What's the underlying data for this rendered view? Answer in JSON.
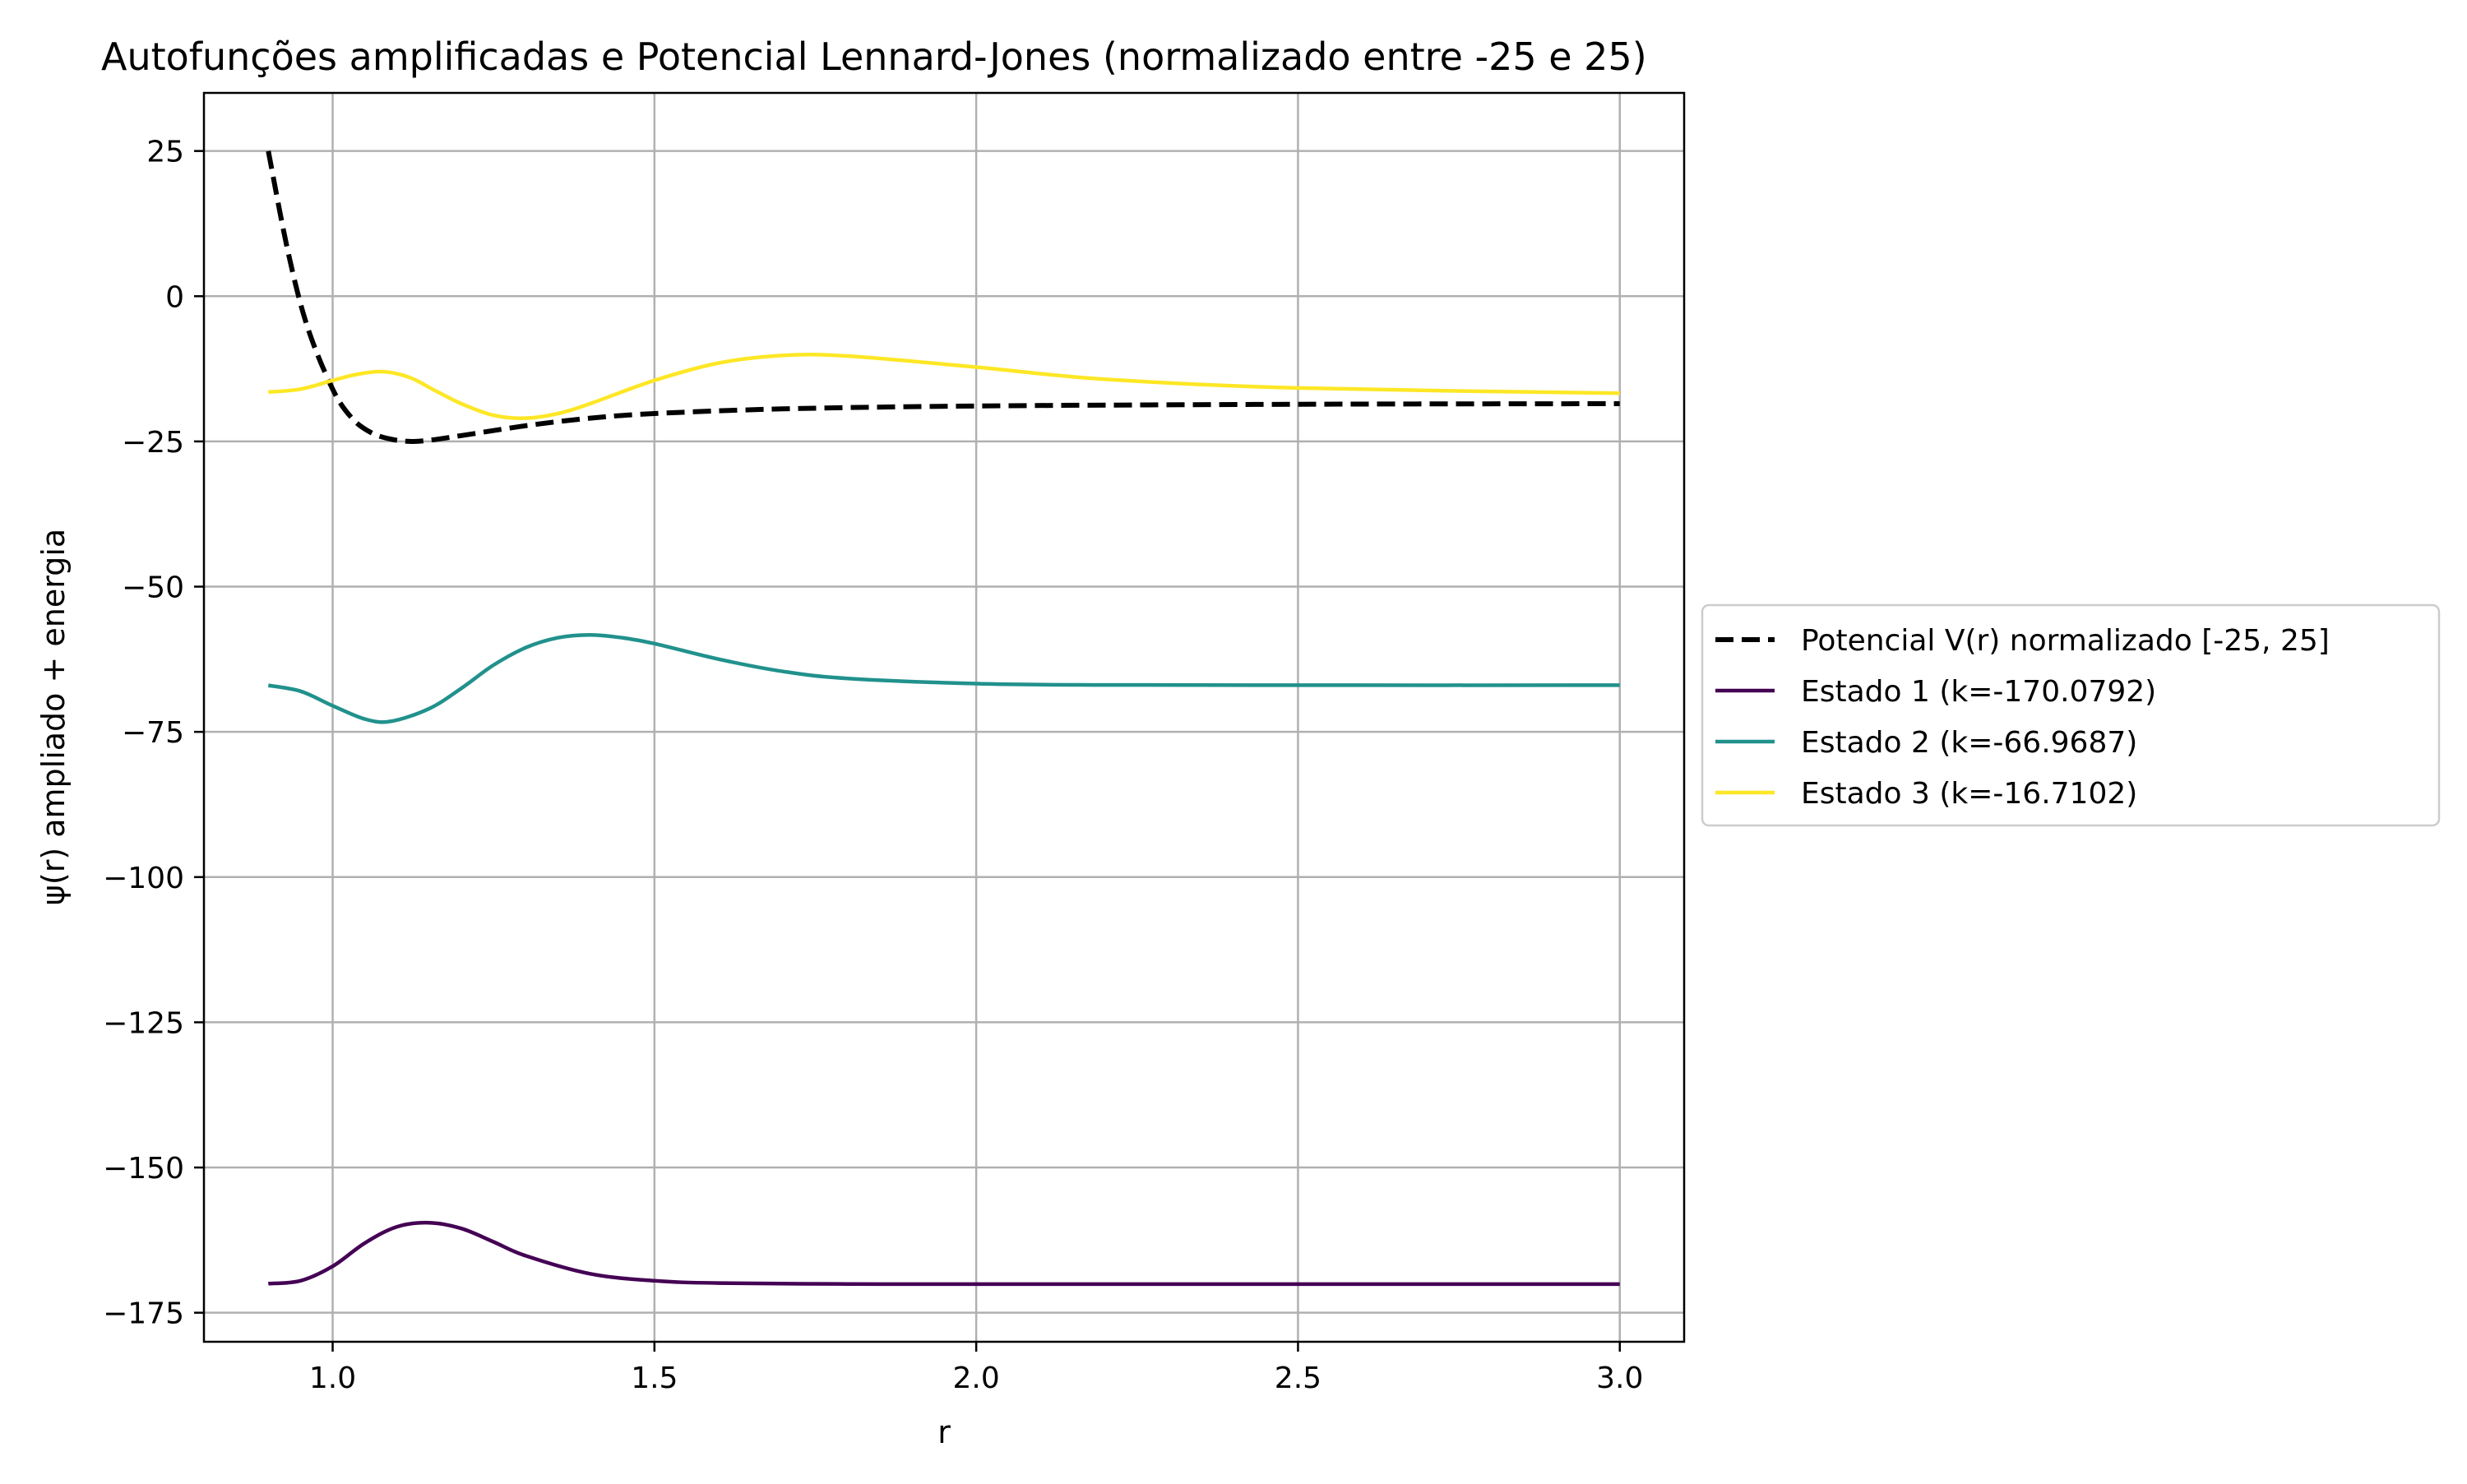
{
  "chart_data": {
    "type": "line",
    "title": "Autofunções amplificadas e Potencial Lennard-Jones (normalizado entre -25 e 25)",
    "xlabel": "r",
    "ylabel": "ψ(r) ampliado + energia",
    "xlim": [
      0.8,
      3.1
    ],
    "ylim": [
      -180,
      35
    ],
    "xticks": [
      1.0,
      1.5,
      2.0,
      2.5,
      3.0
    ],
    "xtick_labels": [
      "1.0",
      "1.5",
      "2.0",
      "2.5",
      "3.0"
    ],
    "yticks": [
      25,
      0,
      -25,
      -50,
      -75,
      -100,
      -125,
      -150,
      -175
    ],
    "ytick_labels": [
      "25",
      "0",
      "−25",
      "−50",
      "−75",
      "−100",
      "−125",
      "−150",
      "−175"
    ],
    "grid": true,
    "legend_position": "center-right outside",
    "series": [
      {
        "name": "Potencial V(r) normalizado [-25, 25]",
        "color": "#000000",
        "dash": "dashed",
        "x": [
          0.9,
          0.93,
          0.96,
          1.0,
          1.03,
          1.06,
          1.09,
          1.12,
          1.15,
          1.2,
          1.3,
          1.4,
          1.5,
          1.7,
          2.0,
          2.5,
          3.0
        ],
        "y": [
          25,
          8,
          -5,
          -16,
          -21,
          -23.5,
          -24.6,
          -25,
          -24.8,
          -24,
          -22.3,
          -21,
          -20.2,
          -19.4,
          -18.9,
          -18.6,
          -18.5
        ]
      },
      {
        "name": "Estado 1 (k=-170.0792)",
        "color": "#440154",
        "dash": "solid",
        "x": [
          0.9,
          0.95,
          1.0,
          1.05,
          1.1,
          1.15,
          1.2,
          1.25,
          1.3,
          1.4,
          1.5,
          1.6,
          1.8,
          2.0,
          2.5,
          3.0
        ],
        "y": [
          -170,
          -169.5,
          -167,
          -163,
          -160.2,
          -159.5,
          -160.5,
          -162.8,
          -165.2,
          -168.3,
          -169.5,
          -169.9,
          -170.05,
          -170.08,
          -170.08,
          -170.08
        ]
      },
      {
        "name": "Estado 2 (k=-66.9687)",
        "color": "#21918c",
        "dash": "solid",
        "x": [
          0.9,
          0.95,
          1.0,
          1.05,
          1.09,
          1.15,
          1.2,
          1.25,
          1.3,
          1.35,
          1.4,
          1.45,
          1.5,
          1.6,
          1.7,
          1.8,
          2.0,
          2.2,
          2.5,
          3.0
        ],
        "y": [
          -67,
          -68,
          -70.5,
          -72.8,
          -73.2,
          -71,
          -67.5,
          -63.5,
          -60.5,
          -58.8,
          -58.3,
          -58.8,
          -59.8,
          -62.5,
          -64.6,
          -65.8,
          -66.7,
          -66.93,
          -66.97,
          -66.97
        ]
      },
      {
        "name": "Estado 3 (k=-16.7102)",
        "color": "#fde725",
        "dash": "solid",
        "x": [
          0.9,
          0.95,
          1.0,
          1.04,
          1.08,
          1.12,
          1.16,
          1.2,
          1.25,
          1.3,
          1.35,
          1.4,
          1.5,
          1.6,
          1.7,
          1.8,
          2.0,
          2.2,
          2.5,
          3.0
        ],
        "y": [
          -16.5,
          -16,
          -14.5,
          -13.4,
          -13,
          -14,
          -16.3,
          -18.5,
          -20.5,
          -21,
          -20.2,
          -18.5,
          -14.5,
          -11.5,
          -10.2,
          -10.3,
          -12.2,
          -14.3,
          -15.8,
          -16.7
        ]
      }
    ]
  }
}
